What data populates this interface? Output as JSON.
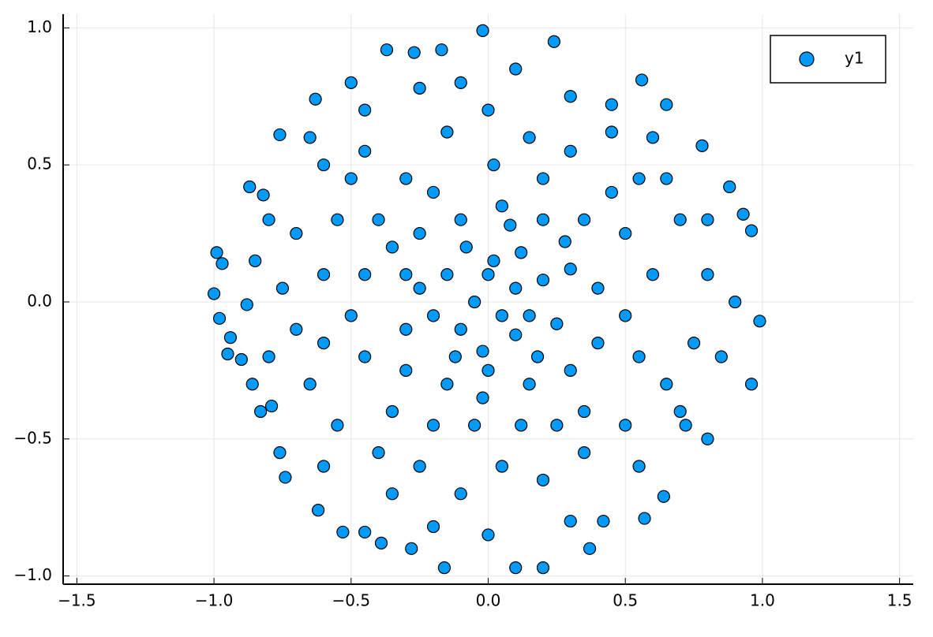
{
  "chart_data": {
    "type": "scatter",
    "x": [
      -0.99,
      -1.0,
      -0.98,
      -0.95,
      -0.9,
      -0.88,
      -0.86,
      -0.83,
      -0.87,
      -0.82,
      -0.76,
      -0.63,
      -0.5,
      -0.37,
      -0.27,
      -0.17,
      -0.02,
      0.24,
      0.56,
      0.65,
      0.78,
      0.88,
      0.93,
      0.96,
      0.99,
      0.96,
      0.8,
      0.72,
      0.64,
      0.57,
      0.42,
      0.37,
      0.2,
      0.1,
      -0.16,
      -0.28,
      -0.39,
      -0.45,
      -0.53,
      -0.62,
      -0.74,
      -0.76,
      -0.79,
      -0.97,
      -0.94,
      -0.6,
      -0.45,
      -0.3,
      -0.15,
      0,
      0.15,
      0.3,
      0.45,
      0.55,
      0.7,
      0.8,
      0.75,
      0.65,
      0.5,
      0.35,
      0.2,
      0.05,
      -0.1,
      -0.25,
      -0.4,
      -0.55,
      -0.65,
      -0.7,
      -0.75,
      -0.7,
      -0.55,
      -0.4,
      -0.25,
      -0.1,
      0.05,
      0.2,
      0.35,
      0.5,
      0.6,
      0.5,
      0.4,
      0.3,
      0.15,
      0,
      -0.15,
      -0.3,
      -0.45,
      -0.5,
      -0.45,
      -0.3,
      -0.15,
      0,
      0.1,
      0.05,
      -0.05,
      0.02,
      -0.08,
      0.12,
      0.2,
      0.25,
      0.1,
      -0.1,
      -0.2,
      -0.25,
      0.3,
      0.4,
      0.35,
      0.25,
      -0.05,
      -0.2,
      -0.35,
      -0.6,
      -0.6,
      0.45,
      0.3,
      0.1,
      -0.1,
      -0.25,
      -0.45,
      0.45,
      0.6,
      0.8,
      0.9,
      0.85,
      0.55,
      0.3,
      0,
      -0.2,
      -0.35,
      -0.6,
      -0.8,
      -0.85,
      -0.8,
      -0.3,
      0.15,
      0.08,
      -0.02,
      0.18,
      -0.12,
      0.28,
      -0.35,
      0.55,
      0.7,
      -0.5,
      0.02,
      0.2,
      -0.2,
      0.65,
      -0.65,
      0.12,
      -0.02
    ],
    "series": [
      {
        "name": "y1",
        "color": "#009af9",
        "values": [
          0.18,
          0.03,
          -0.06,
          -0.19,
          -0.21,
          -0.01,
          -0.3,
          -0.4,
          0.42,
          0.39,
          0.61,
          0.74,
          0.8,
          0.92,
          0.91,
          0.92,
          0.99,
          0.95,
          0.81,
          0.72,
          0.57,
          0.42,
          0.32,
          0.26,
          -0.07,
          -0.3,
          -0.5,
          -0.45,
          -0.71,
          -0.79,
          -0.8,
          -0.9,
          -0.97,
          -0.97,
          -0.97,
          -0.9,
          -0.88,
          -0.84,
          -0.84,
          -0.76,
          -0.64,
          -0.55,
          -0.38,
          0.14,
          -0.13,
          0.5,
          0.55,
          0.45,
          0.62,
          0.7,
          0.6,
          0.55,
          0.62,
          0.45,
          0.3,
          0.1,
          -0.15,
          -0.3,
          -0.45,
          -0.55,
          -0.65,
          -0.6,
          -0.7,
          -0.6,
          -0.55,
          -0.45,
          -0.3,
          -0.1,
          0.05,
          0.25,
          0.3,
          0.3,
          0.25,
          0.3,
          0.35,
          0.3,
          0.3,
          0.25,
          0.1,
          -0.05,
          -0.15,
          -0.25,
          -0.3,
          -0.25,
          -0.3,
          -0.25,
          -0.2,
          -0.05,
          0.1,
          0.1,
          0.1,
          0.1,
          0.05,
          -0.05,
          0,
          0.15,
          0.2,
          0.18,
          0.08,
          -0.08,
          -0.12,
          -0.1,
          -0.05,
          0.05,
          0.12,
          0.05,
          -0.4,
          -0.45,
          -0.45,
          -0.45,
          -0.4,
          0.1,
          -0.15,
          0.4,
          0.75,
          0.85,
          0.8,
          0.78,
          0.7,
          0.72,
          0.6,
          0.3,
          0,
          -0.2,
          -0.6,
          -0.8,
          -0.85,
          -0.82,
          -0.7,
          -0.6,
          -0.2,
          0.15,
          0.3,
          -0.1,
          -0.05,
          0.28,
          -0.18,
          -0.2,
          -0.2,
          0.22,
          0.2,
          -0.2,
          -0.4,
          0.45,
          0.5,
          0.45,
          0.4,
          0.45,
          0.6,
          -0.45,
          -0.35
        ]
      }
    ],
    "xlim": [
      -1.55,
      1.55
    ],
    "ylim": [
      -1.03,
      1.05
    ],
    "xticks": [
      {
        "value": -1.5,
        "label": "−1.5"
      },
      {
        "value": -1,
        "label": "−1.0"
      },
      {
        "value": -0.5,
        "label": "−0.5"
      },
      {
        "value": 0,
        "label": "0.0"
      },
      0.5,
      {
        "value": 1,
        "label": "1.0"
      },
      1.5
    ],
    "yticks": [
      {
        "value": -1,
        "label": "−1.0"
      },
      {
        "value": -0.5,
        "label": "−0.5"
      },
      {
        "value": 0,
        "label": "0.0"
      },
      0.5,
      {
        "value": 1,
        "label": "1.0"
      }
    ],
    "grid": true,
    "legend": "top right"
  }
}
